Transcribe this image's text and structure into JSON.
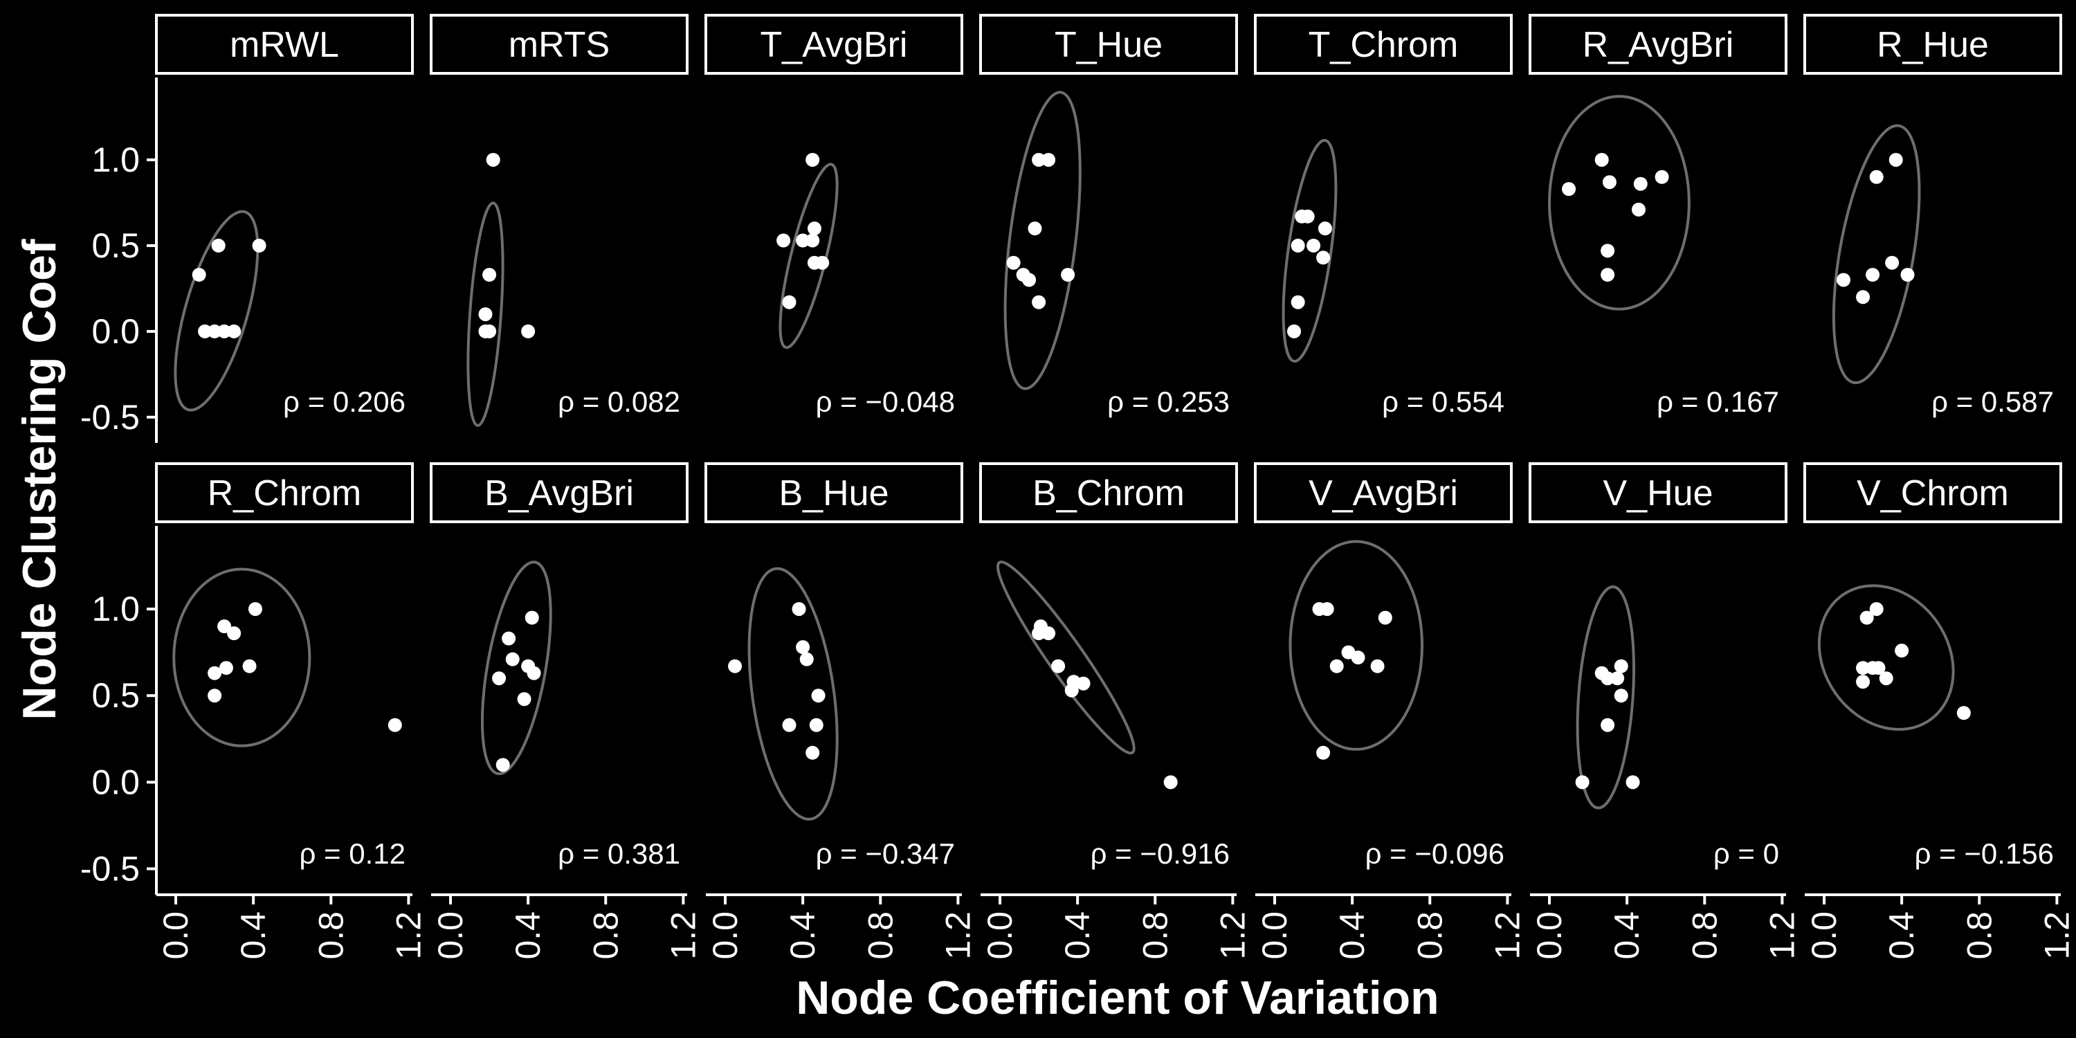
{
  "colors": {
    "background": "#000000",
    "foreground": "#ffffff",
    "ellipse": "#6e6e6e"
  },
  "chart_data": {
    "type": "scatter",
    "subtype": "faceted scatter with confidence ellipses",
    "xlabel": "Node Coefficient of Variation",
    "ylabel": "Node Clustering Coef",
    "xlim": [
      -0.1,
      1.22
    ],
    "ylim": [
      -0.65,
      1.48
    ],
    "xticks": [
      0.0,
      0.4,
      0.8,
      1.2
    ],
    "xtick_labels": [
      "0.0",
      "0.4",
      "0.8",
      "1.2"
    ],
    "yticks": [
      -0.5,
      0.0,
      0.5,
      1.0
    ],
    "ytick_labels": [
      "-0.5",
      "0.0",
      "0.5",
      "1.0"
    ],
    "grid": false,
    "layout": {
      "rows": 2,
      "cols": 7
    },
    "panels": [
      {
        "label": "mRWL",
        "rho_text": "ρ = 0.206",
        "points": [
          [
            0.12,
            0.33
          ],
          [
            0.15,
            0.0
          ],
          [
            0.2,
            0.0
          ],
          [
            0.22,
            0.5
          ],
          [
            0.25,
            0.0
          ],
          [
            0.3,
            0.0
          ],
          [
            0.43,
            0.5
          ]
        ],
        "ellipse": {
          "cx": 0.21,
          "cy": 0.12,
          "rx": 0.16,
          "ry": 0.6,
          "angle": 16
        }
      },
      {
        "label": "mRTS",
        "rho_text": "ρ = 0.082",
        "points": [
          [
            0.18,
            0.0
          ],
          [
            0.18,
            0.1
          ],
          [
            0.2,
            0.33
          ],
          [
            0.2,
            0.0
          ],
          [
            0.22,
            1.0
          ],
          [
            0.4,
            0.0
          ]
        ],
        "ellipse": {
          "cx": 0.18,
          "cy": 0.1,
          "rx": 0.08,
          "ry": 0.65,
          "angle": 4
        }
      },
      {
        "label": "T_AvgBri",
        "rho_text": "ρ = −0.048",
        "points": [
          [
            0.3,
            0.53
          ],
          [
            0.33,
            0.17
          ],
          [
            0.4,
            0.53
          ],
          [
            0.45,
            0.53
          ],
          [
            0.45,
            1.0
          ],
          [
            0.46,
            0.6
          ],
          [
            0.46,
            0.4
          ],
          [
            0.5,
            0.4
          ]
        ],
        "ellipse": {
          "cx": 0.43,
          "cy": 0.44,
          "rx": 0.09,
          "ry": 0.55,
          "angle": 14
        }
      },
      {
        "label": "T_Hue",
        "rho_text": "ρ = 0.253",
        "points": [
          [
            0.07,
            0.4
          ],
          [
            0.12,
            0.33
          ],
          [
            0.15,
            0.3
          ],
          [
            0.18,
            0.6
          ],
          [
            0.2,
            0.17
          ],
          [
            0.2,
            1.0
          ],
          [
            0.25,
            1.0
          ],
          [
            0.35,
            0.33
          ]
        ],
        "ellipse": {
          "cx": 0.22,
          "cy": 0.53,
          "rx": 0.17,
          "ry": 0.87,
          "angle": 7
        }
      },
      {
        "label": "T_Chrom",
        "rho_text": "ρ = 0.554",
        "points": [
          [
            0.1,
            0.0
          ],
          [
            0.12,
            0.17
          ],
          [
            0.12,
            0.5
          ],
          [
            0.14,
            0.67
          ],
          [
            0.17,
            0.67
          ],
          [
            0.2,
            0.5
          ],
          [
            0.25,
            0.43
          ],
          [
            0.26,
            0.6
          ]
        ],
        "ellipse": {
          "cx": 0.18,
          "cy": 0.47,
          "rx": 0.11,
          "ry": 0.65,
          "angle": 8
        }
      },
      {
        "label": "R_AvgBri",
        "rho_text": "ρ = 0.167",
        "points": [
          [
            0.1,
            0.83
          ],
          [
            0.27,
            1.0
          ],
          [
            0.3,
            0.47
          ],
          [
            0.3,
            0.33
          ],
          [
            0.31,
            0.87
          ],
          [
            0.46,
            0.71
          ],
          [
            0.47,
            0.86
          ],
          [
            0.58,
            0.9
          ]
        ],
        "ellipse": {
          "cx": 0.36,
          "cy": 0.75,
          "rx": 0.36,
          "ry": 0.62,
          "angle": 0
        }
      },
      {
        "label": "R_Hue",
        "rho_text": "ρ = 0.587",
        "points": [
          [
            0.1,
            0.3
          ],
          [
            0.2,
            0.2
          ],
          [
            0.25,
            0.33
          ],
          [
            0.27,
            0.9
          ],
          [
            0.35,
            0.4
          ],
          [
            0.37,
            1.0
          ],
          [
            0.43,
            0.33
          ]
        ],
        "ellipse": {
          "cx": 0.27,
          "cy": 0.45,
          "rx": 0.19,
          "ry": 0.76,
          "angle": 10
        }
      },
      {
        "label": "R_Chrom",
        "rho_text": "ρ = 0.12",
        "points": [
          [
            0.2,
            0.5
          ],
          [
            0.2,
            0.63
          ],
          [
            0.25,
            0.9
          ],
          [
            0.26,
            0.66
          ],
          [
            0.3,
            0.86
          ],
          [
            0.38,
            0.67
          ],
          [
            0.41,
            1.0
          ],
          [
            1.13,
            0.33
          ]
        ],
        "ellipse": {
          "cx": 0.34,
          "cy": 0.72,
          "rx": 0.35,
          "ry": 0.51,
          "angle": 0
        }
      },
      {
        "label": "B_AvgBri",
        "rho_text": "ρ = 0.381",
        "points": [
          [
            0.25,
            0.6
          ],
          [
            0.27,
            0.1
          ],
          [
            0.3,
            0.83
          ],
          [
            0.32,
            0.71
          ],
          [
            0.38,
            0.48
          ],
          [
            0.4,
            0.67
          ],
          [
            0.42,
            0.95
          ],
          [
            0.43,
            0.63
          ]
        ],
        "ellipse": {
          "cx": 0.34,
          "cy": 0.66,
          "rx": 0.15,
          "ry": 0.62,
          "angle": 10
        }
      },
      {
        "label": "B_Hue",
        "rho_text": "ρ = −0.347",
        "points": [
          [
            0.05,
            0.67
          ],
          [
            0.33,
            0.33
          ],
          [
            0.38,
            1.0
          ],
          [
            0.4,
            0.78
          ],
          [
            0.42,
            0.71
          ],
          [
            0.45,
            0.17
          ],
          [
            0.47,
            0.33
          ],
          [
            0.48,
            0.5
          ]
        ],
        "ellipse": {
          "cx": 0.35,
          "cy": 0.51,
          "rx": 0.21,
          "ry": 0.73,
          "angle": -8
        }
      },
      {
        "label": "B_Chrom",
        "rho_text": "ρ = −0.916",
        "points": [
          [
            0.2,
            0.86
          ],
          [
            0.21,
            0.9
          ],
          [
            0.25,
            0.86
          ],
          [
            0.3,
            0.67
          ],
          [
            0.37,
            0.53
          ],
          [
            0.38,
            0.58
          ],
          [
            0.43,
            0.57
          ],
          [
            0.88,
            0.0
          ]
        ],
        "ellipse": {
          "cx": 0.34,
          "cy": 0.72,
          "rx": 0.09,
          "ry": 0.67,
          "angle": -35
        }
      },
      {
        "label": "V_AvgBri",
        "rho_text": "ρ = −0.096",
        "points": [
          [
            0.23,
            1.0
          ],
          [
            0.25,
            0.17
          ],
          [
            0.27,
            1.0
          ],
          [
            0.32,
            0.67
          ],
          [
            0.38,
            0.75
          ],
          [
            0.43,
            0.72
          ],
          [
            0.53,
            0.67
          ],
          [
            0.57,
            0.95
          ]
        ],
        "ellipse": {
          "cx": 0.42,
          "cy": 0.79,
          "rx": 0.34,
          "ry": 0.6,
          "angle": 0
        }
      },
      {
        "label": "V_Hue",
        "rho_text": "ρ = 0",
        "points": [
          [
            0.17,
            0.0
          ],
          [
            0.27,
            0.63
          ],
          [
            0.3,
            0.33
          ],
          [
            0.3,
            0.6
          ],
          [
            0.35,
            0.6
          ],
          [
            0.37,
            0.5
          ],
          [
            0.37,
            0.67
          ],
          [
            0.43,
            0.0
          ]
        ],
        "ellipse": {
          "cx": 0.29,
          "cy": 0.49,
          "rx": 0.14,
          "ry": 0.64,
          "angle": 4
        }
      },
      {
        "label": "V_Chrom",
        "rho_text": "ρ = −0.156",
        "points": [
          [
            0.2,
            0.58
          ],
          [
            0.2,
            0.66
          ],
          [
            0.22,
            0.95
          ],
          [
            0.25,
            0.66
          ],
          [
            0.27,
            1.0
          ],
          [
            0.28,
            0.66
          ],
          [
            0.32,
            0.6
          ],
          [
            0.4,
            0.76
          ],
          [
            0.72,
            0.4
          ]
        ],
        "ellipse": {
          "cx": 0.32,
          "cy": 0.72,
          "rx": 0.32,
          "ry": 0.44,
          "angle": -35
        }
      }
    ]
  }
}
